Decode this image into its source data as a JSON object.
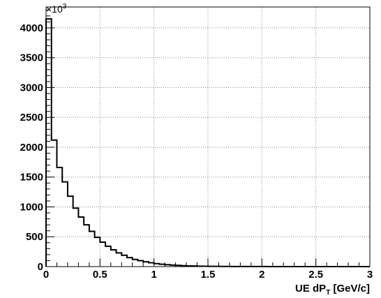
{
  "chart_data": {
    "type": "histogram",
    "title": "",
    "xlabel": {
      "pre": "UE  dP",
      "sub": "T",
      "post": " [GeV/c]"
    },
    "ylabel": "",
    "y_multiplier": {
      "base": "×10",
      "exp": "3"
    },
    "xlim": [
      0,
      3
    ],
    "ylim": [
      0,
      4350
    ],
    "grid": true,
    "x_ticks": [
      0,
      0.5,
      1,
      1.5,
      2,
      2.5,
      3
    ],
    "x_tick_labels": [
      "0",
      "0.5",
      "1",
      "1.5",
      "2",
      "2.5",
      "3"
    ],
    "y_ticks": [
      0,
      500,
      1000,
      1500,
      2000,
      2500,
      3000,
      3500,
      4000
    ],
    "y_tick_labels": [
      "0",
      "500",
      "1000",
      "1500",
      "2000",
      "2500",
      "3000",
      "3500",
      "4000"
    ],
    "bin_width": 0.05,
    "bin_start": 0,
    "values": [
      4150,
      2120,
      1660,
      1420,
      1180,
      980,
      830,
      700,
      590,
      490,
      410,
      340,
      280,
      230,
      190,
      150,
      120,
      100,
      80,
      65,
      50,
      40,
      32,
      25,
      20,
      15,
      12,
      10,
      8,
      6,
      5,
      4,
      3,
      3,
      2,
      2,
      1,
      1,
      1,
      1,
      1,
      0,
      0,
      0,
      0,
      0,
      0,
      0,
      0,
      0,
      0,
      0,
      0,
      0,
      0,
      0,
      0,
      0,
      0,
      0
    ]
  }
}
